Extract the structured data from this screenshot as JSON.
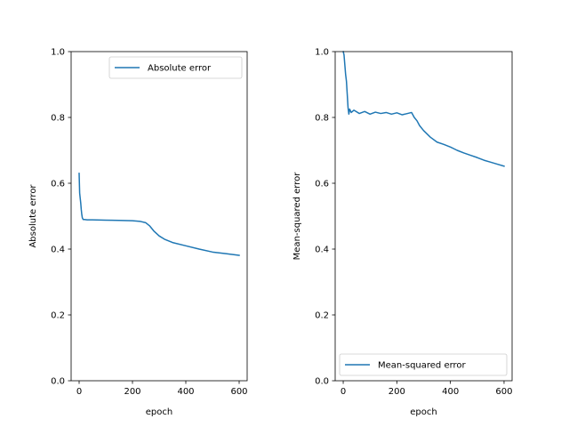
{
  "chart_data": [
    {
      "type": "line",
      "xlabel": "epoch",
      "ylabel": "Absolute error",
      "xlim": [
        -30,
        630
      ],
      "ylim": [
        0,
        1.0
      ],
      "xticks": [
        0,
        200,
        400,
        600
      ],
      "yticks": [
        0.0,
        0.2,
        0.4,
        0.6,
        0.8,
        1.0
      ],
      "xtick_labels": [
        "0",
        "200",
        "400",
        "600"
      ],
      "ytick_labels": [
        "0.0",
        "0.2",
        "0.4",
        "0.6",
        "0.8",
        "1.0"
      ],
      "legend_position": "upper-right",
      "series": [
        {
          "name": "Absolute error",
          "color": "#1f77b4",
          "x": [
            0,
            2,
            4,
            6,
            8,
            10,
            12,
            15,
            20,
            30,
            50,
            100,
            150,
            200,
            230,
            250,
            265,
            280,
            300,
            320,
            350,
            400,
            450,
            500,
            550,
            600
          ],
          "y": [
            0.63,
            0.57,
            0.555,
            0.54,
            0.52,
            0.505,
            0.495,
            0.49,
            0.49,
            0.489,
            0.489,
            0.488,
            0.487,
            0.486,
            0.484,
            0.48,
            0.47,
            0.455,
            0.44,
            0.43,
            0.42,
            0.41,
            0.4,
            0.391,
            0.386,
            0.381
          ]
        }
      ]
    },
    {
      "type": "line",
      "xlabel": "epoch",
      "ylabel": "Mean-squared error",
      "xlim": [
        -30,
        630
      ],
      "ylim": [
        0,
        1.0
      ],
      "xticks": [
        0,
        200,
        400,
        600
      ],
      "yticks": [
        0.0,
        0.2,
        0.4,
        0.6,
        0.8,
        1.0
      ],
      "xtick_labels": [
        "0",
        "200",
        "400",
        "600"
      ],
      "ytick_labels": [
        "0.0",
        "0.2",
        "0.4",
        "0.6",
        "0.8",
        "1.0"
      ],
      "legend_position": "lower-right",
      "series": [
        {
          "name": "Mean-squared error",
          "color": "#1f77b4",
          "x": [
            0,
            3,
            6,
            9,
            12,
            15,
            18,
            21,
            24,
            30,
            40,
            60,
            80,
            100,
            120,
            140,
            160,
            180,
            200,
            220,
            240,
            255,
            265,
            275,
            285,
            300,
            325,
            350,
            375,
            400,
            425,
            450,
            475,
            500,
            525,
            550,
            575,
            600
          ],
          "y": [
            1.0,
            0.99,
            0.96,
            0.93,
            0.91,
            0.87,
            0.83,
            0.81,
            0.825,
            0.815,
            0.822,
            0.812,
            0.818,
            0.81,
            0.816,
            0.812,
            0.815,
            0.81,
            0.814,
            0.808,
            0.812,
            0.815,
            0.8,
            0.79,
            0.775,
            0.76,
            0.74,
            0.725,
            0.718,
            0.71,
            0.7,
            0.692,
            0.685,
            0.678,
            0.67,
            0.664,
            0.658,
            0.652
          ]
        }
      ]
    }
  ]
}
